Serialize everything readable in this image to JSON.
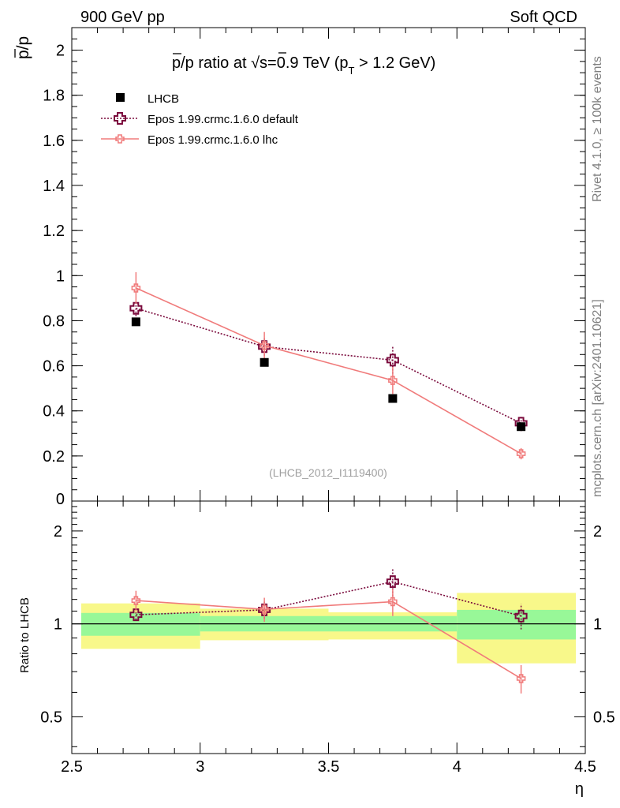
{
  "header": {
    "left": "900 GeV pp",
    "right": "Soft QCD"
  },
  "side_labels": {
    "rivet": "Rivet 4.1.0, ≥ 100k events",
    "mcplots": "mcplots.cern.ch [arXiv:2401.10621]"
  },
  "colors": {
    "data": "#000000",
    "mc_default": "#7a0a3c",
    "mc_lhc": "#f07b7b",
    "band_inner": "#98f898",
    "band_outer": "#f8f88a"
  },
  "chart_data": [
    {
      "type": "scatter",
      "panel": "main",
      "title": "p̅/p ratio at √s=0.9 TeV (p_T > 1.2 GeV)",
      "title_parts": {
        "prefix": "p/p ratio at ",
        "sqrt": "s",
        "middle": "=0.9 TeV (p",
        "sub": "T",
        "suffix": " > 1.2 GeV)"
      },
      "ylabel": "p/p",
      "xlabel": "η",
      "xlim": [
        2.5,
        4.5
      ],
      "ylim": [
        0,
        2.1
      ],
      "yticks": [
        0,
        0.2,
        0.4,
        0.6,
        0.8,
        1,
        1.2,
        1.4,
        1.6,
        1.8,
        2
      ],
      "ytick_labels": [
        "0",
        "0.2",
        "0.4",
        "0.6",
        "0.8",
        "1",
        "1.2",
        "1.4",
        "1.6",
        "1.8",
        "2"
      ],
      "analysis_label": "(LHCB_2012_I1119400)",
      "series": [
        {
          "name": "LHCB",
          "style": "data",
          "x": [
            2.75,
            3.25,
            3.75,
            4.25
          ],
          "y": [
            0.795,
            0.615,
            0.455,
            0.33
          ],
          "xerr": [
            0.25,
            0.25,
            0.25,
            0.25
          ]
        },
        {
          "name": "Epos 1.99.crmc.1.6.0 default",
          "style": "default",
          "x": [
            2.75,
            3.25,
            3.75,
            4.25
          ],
          "y": [
            0.855,
            0.685,
            0.625,
            0.345
          ],
          "yerr": [
            0.035,
            0.04,
            0.06,
            0.035
          ]
        },
        {
          "name": "Epos 1.99.crmc.1.6.0 lhc",
          "style": "lhc",
          "x": [
            2.75,
            3.25,
            3.75,
            4.25
          ],
          "y": [
            0.945,
            0.69,
            0.535,
            0.21
          ],
          "yerr": [
            0.07,
            0.06,
            0.06,
            0.025
          ]
        }
      ]
    },
    {
      "type": "scatter",
      "panel": "ratio",
      "ylabel": "Ratio to LHCB",
      "xlabel": "η",
      "xlim": [
        2.5,
        4.5
      ],
      "ylim": [
        0.38,
        2.5
      ],
      "yscale": "log",
      "yticks": [
        0.5,
        1,
        2
      ],
      "ytick_labels": [
        "0.5",
        "1",
        "2"
      ],
      "xticks": [
        2.5,
        3,
        3.5,
        4,
        4.5
      ],
      "xtick_labels": [
        "2.5",
        "3",
        "3.5",
        "4",
        "4.5"
      ],
      "bands": [
        {
          "x0": 2.5,
          "x1": 3.0,
          "inner": [
            0.915,
            1.085
          ],
          "outer": [
            0.83,
            1.165
          ]
        },
        {
          "x0": 3.0,
          "x1": 3.5,
          "inner": [
            0.945,
            1.06
          ],
          "outer": [
            0.885,
            1.12
          ]
        },
        {
          "x0": 3.5,
          "x1": 4.0,
          "inner": [
            0.945,
            1.06
          ],
          "outer": [
            0.89,
            1.09
          ]
        },
        {
          "x0": 4.0,
          "x1": 4.5,
          "inner": [
            0.89,
            1.11
          ],
          "outer": [
            0.745,
            1.26
          ]
        }
      ],
      "series": [
        {
          "name": "Epos 1.99.crmc.1.6.0 default",
          "style": "default",
          "x": [
            2.75,
            3.25,
            3.75,
            4.25
          ],
          "y": [
            1.07,
            1.11,
            1.37,
            1.06
          ],
          "yerr": [
            0.04,
            0.07,
            0.14,
            0.1
          ]
        },
        {
          "name": "Epos 1.99.crmc.1.6.0 lhc",
          "style": "lhc",
          "x": [
            2.75,
            3.25,
            3.75,
            4.25
          ],
          "y": [
            1.19,
            1.115,
            1.18,
            0.665
          ],
          "yerr": [
            0.09,
            0.1,
            0.12,
            0.07
          ]
        }
      ]
    }
  ]
}
